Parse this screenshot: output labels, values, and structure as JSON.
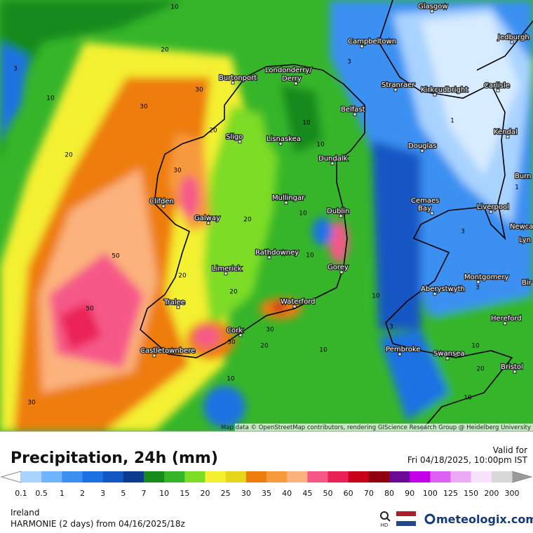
{
  "map": {
    "cities": [
      "Glasgow",
      "Jedburgh",
      "Campbeltown",
      "Burtonport",
      "Londonderry/",
      "Derry",
      "Stranraer",
      "Kirkcudbright",
      "Carlisle",
      "Belfast",
      "Sligo",
      "Lisnaskea",
      "Kendal",
      "Douglas",
      "Dundalk",
      "Burn",
      "Clifden",
      "Mullingar",
      "Cemaes",
      "Bay",
      "Dublin",
      "Liverpool",
      "Galway",
      "Newca",
      "Lyn",
      "Rathdowney",
      "Limerick",
      "Gorey",
      "Montgomery",
      "Bir",
      "Aberystwyth",
      "Tralee",
      "Waterford",
      "Hereford",
      "Cork",
      "Castletownbere",
      "Pembroke",
      "Swansea",
      "Bristol"
    ],
    "contour_labels": [
      10,
      20,
      3,
      10,
      30,
      30,
      20,
      20,
      10,
      10,
      30,
      20,
      10,
      50,
      50,
      20,
      20,
      10,
      10,
      30,
      30,
      20,
      10,
      10,
      30,
      3,
      1,
      1,
      3,
      3,
      10,
      20,
      10,
      3
    ],
    "attribution": "Map data © OpenStreetMap contributors, rendering GIScience Research Group @ Heidelberg University"
  },
  "header": {
    "title": "Precipitation, 24h (mm)",
    "valid_label": "Valid for",
    "valid_time": "Fri 04/18/2025, 10:00pm IST"
  },
  "legend": {
    "values": [
      0.1,
      0.5,
      1,
      2,
      3,
      5,
      7,
      10,
      15,
      20,
      25,
      30,
      35,
      40,
      45,
      50,
      60,
      70,
      80,
      90,
      100,
      125,
      150,
      200,
      300
    ],
    "colors": [
      "#a9d3ff",
      "#70b4fa",
      "#3b90f2",
      "#1d72e2",
      "#1257c4",
      "#0b3b8e",
      "#198a1c",
      "#36b52a",
      "#7ddc26",
      "#f4f030",
      "#e6d51a",
      "#ee7d0e",
      "#f79a3c",
      "#fbb27c",
      "#f65888",
      "#ea2156",
      "#c8001a",
      "#8e0010",
      "#6a0a96",
      "#c400e8",
      "#dc60f2",
      "#ecaaf6",
      "#f7e3fb",
      "#d8d8d8"
    ]
  },
  "footer": {
    "region": "Ireland",
    "model_run": "HARMONIE (2 days) from 04/16/2025/18z",
    "hd": "HD",
    "brand": "meteologix.com"
  }
}
